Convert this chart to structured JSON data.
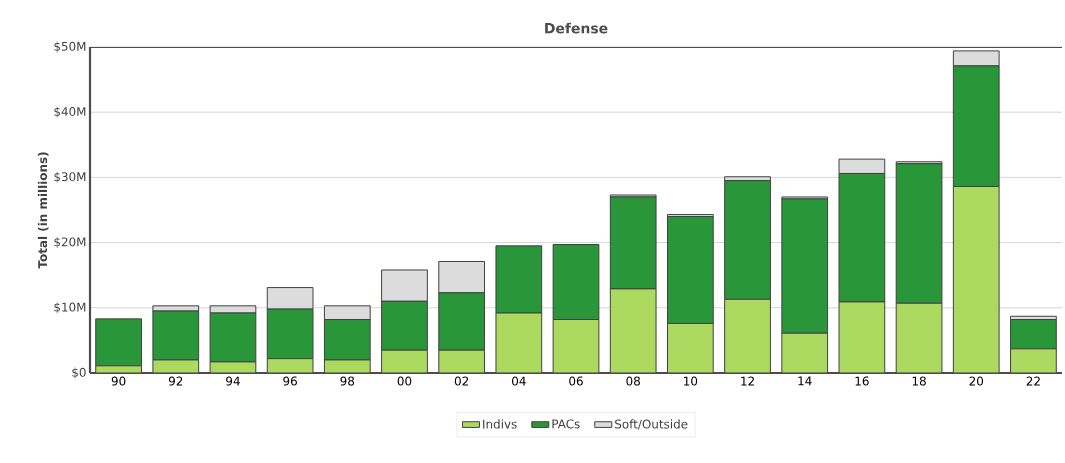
{
  "chart_data": {
    "type": "bar",
    "title": "Defense",
    "ylabel": "Total (in millions)",
    "categories": [
      "90",
      "92",
      "94",
      "96",
      "98",
      "00",
      "02",
      "04",
      "06",
      "08",
      "10",
      "12",
      "14",
      "16",
      "18",
      "20",
      "22"
    ],
    "stacked": true,
    "series": [
      {
        "name": "Indivs",
        "color": "#acda60",
        "values": [
          1.1,
          2.0,
          1.7,
          2.2,
          2.0,
          3.5,
          3.5,
          9.2,
          8.2,
          12.9,
          7.6,
          11.3,
          6.1,
          10.9,
          10.7,
          28.6,
          3.7
        ]
      },
      {
        "name": "PACs",
        "color": "#2a963a",
        "values": [
          7.2,
          7.5,
          7.5,
          7.6,
          6.2,
          7.5,
          8.8,
          10.3,
          11.5,
          14.1,
          16.4,
          18.2,
          20.6,
          19.7,
          21.4,
          18.5,
          4.5
        ]
      },
      {
        "name": "Soft/Outside",
        "color": "#dcdcdc",
        "values": [
          null,
          0.8,
          1.1,
          3.3,
          2.1,
          4.8,
          4.8,
          null,
          null,
          0.3,
          0.3,
          0.6,
          0.3,
          2.2,
          0.3,
          2.3,
          0.5
        ]
      }
    ],
    "ylim": [
      0,
      50
    ],
    "yticks": [
      {
        "value": 0,
        "label": "$0"
      },
      {
        "value": 10,
        "label": "$10M"
      },
      {
        "value": 20,
        "label": "$20M"
      },
      {
        "value": 30,
        "label": "$30M"
      },
      {
        "value": 40,
        "label": "$40M"
      },
      {
        "value": 50,
        "label": "$50M"
      }
    ],
    "grid": "y",
    "legend": "bottom"
  }
}
